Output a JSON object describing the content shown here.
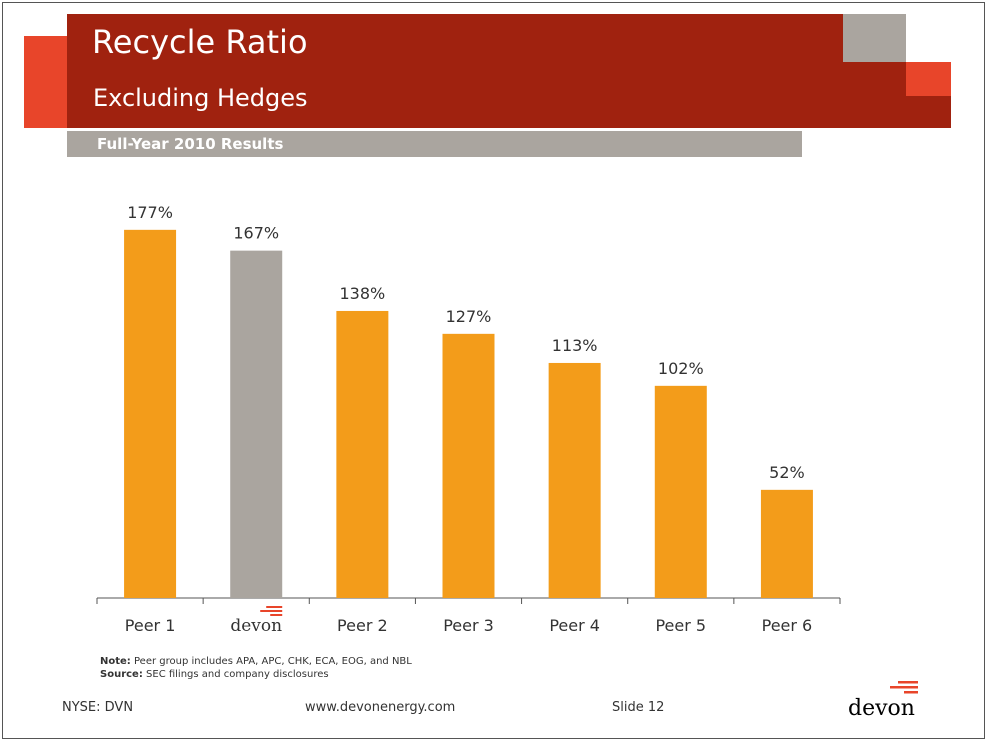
{
  "slide": {
    "title": "Recycle Ratio",
    "subtitle": "Excluding Hedges",
    "section_label": "Full-Year 2010 Results"
  },
  "colors": {
    "title_bar": "#a0220f",
    "accent_orange": "#e8452a",
    "grey": "#aaa59f",
    "bar_peer": "#f39c1a",
    "bar_devon": "#aaa59f"
  },
  "chart_data": {
    "type": "bar",
    "categories": [
      "Peer 1",
      "devon",
      "Peer 2",
      "Peer 3",
      "Peer 4",
      "Peer 5",
      "Peer 6"
    ],
    "values": [
      177,
      167,
      138,
      127,
      113,
      102,
      52
    ],
    "data_labels": [
      "177%",
      "167%",
      "138%",
      "127%",
      "113%",
      "102%",
      "52%"
    ],
    "highlight_index": 1,
    "ylim": [
      0,
      200
    ],
    "title": "",
    "xlabel": "",
    "ylabel": "",
    "grid": false,
    "legend": "none"
  },
  "notes": {
    "note_label": "Note:",
    "note_text": " Peer group includes APA, APC, CHK, ECA, EOG, and NBL",
    "source_label": "Source:",
    "source_text": " SEC filings and company disclosures"
  },
  "footer": {
    "ticker": "NYSE: DVN",
    "url": "www.devonenergy.com",
    "slide_number": "Slide 12",
    "logo_text": "devon"
  }
}
